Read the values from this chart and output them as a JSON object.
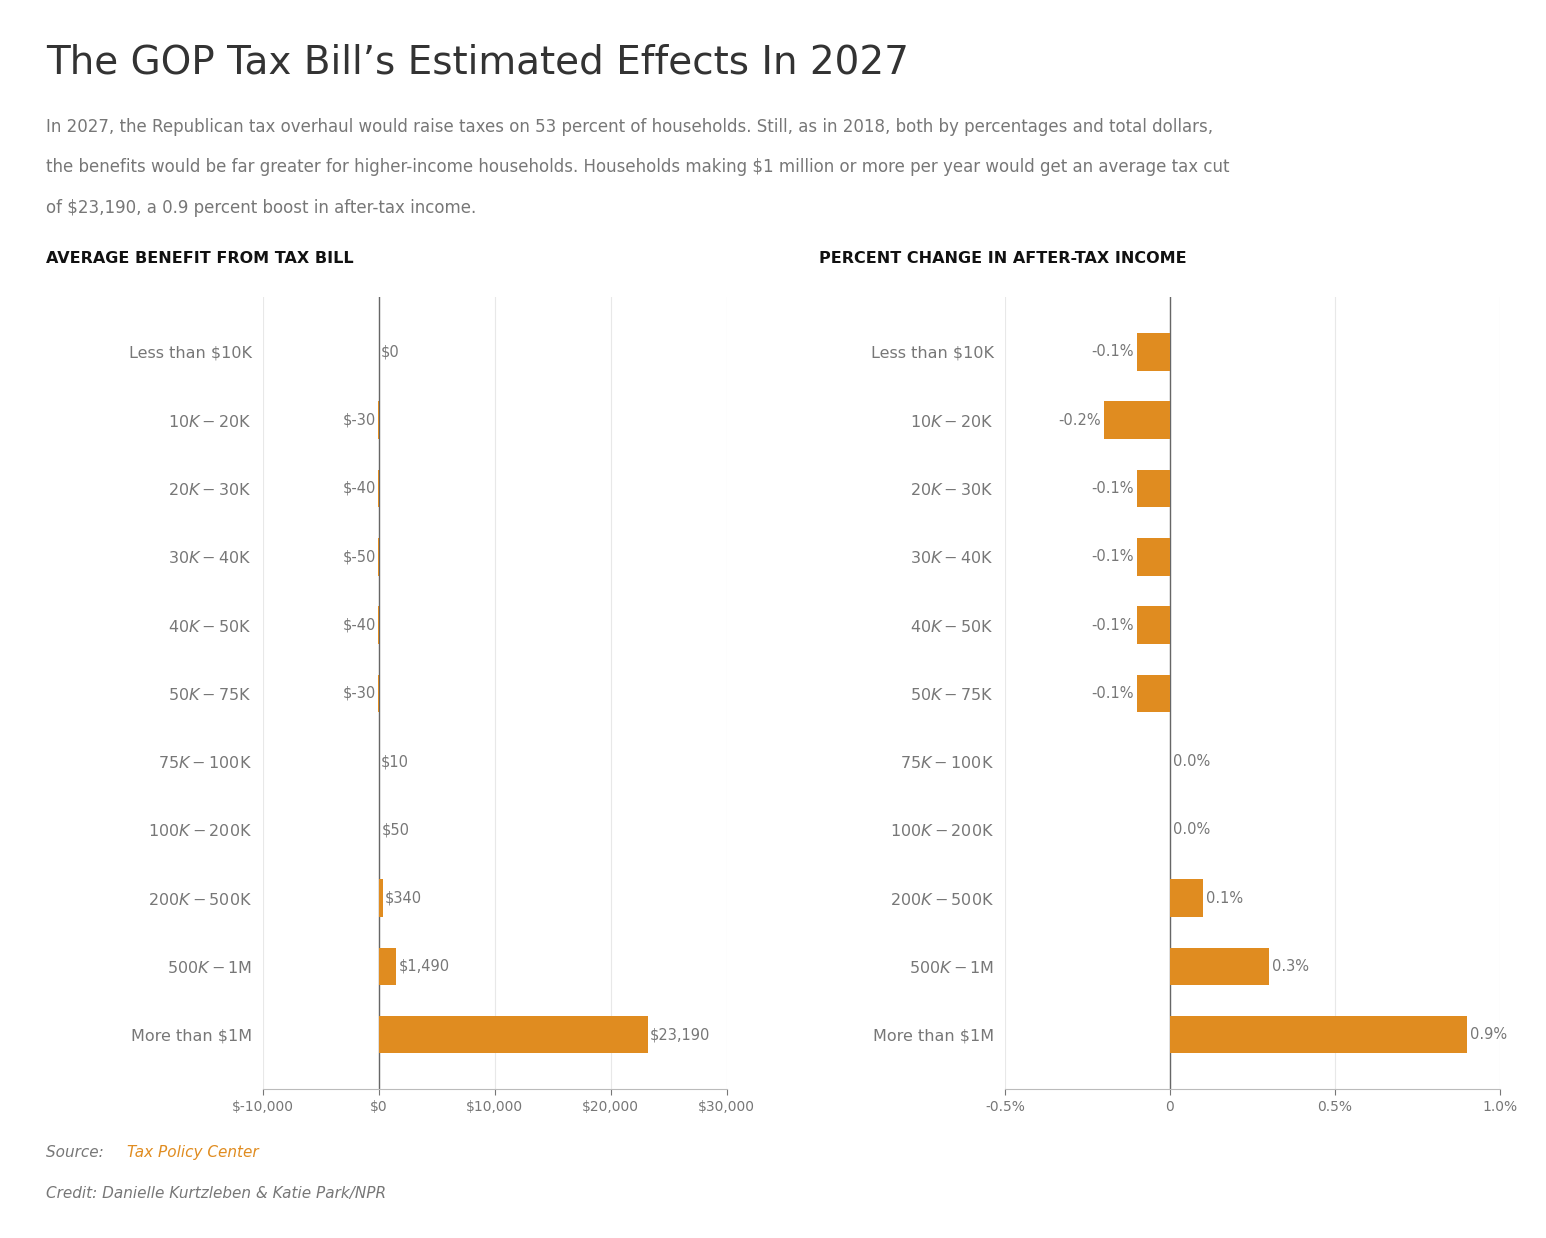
{
  "title": "The GOP Tax Bill’s Estimated Effects In 2027",
  "subtitle_line1": "In 2027, the Republican tax overhaul would raise taxes on 53 percent of households. Still, as in 2018, both by percentages and total dollars,",
  "subtitle_line2": "the benefits would be far greater for higher-income households. Households making $1 million or more per year would get an average tax cut",
  "subtitle_line3": "of $23,190, a 0.9 percent boost in after-tax income.",
  "source_text": "Source: ",
  "source_link": "Tax Policy Center",
  "credit_text": "Credit: Danielle Kurtzleben & Katie Park/NPR",
  "categories": [
    "Less than $10K",
    "$10K-$20K",
    "$20K-$30K",
    "$30K-$40K",
    "$40K-$50K",
    "$50K-$75K",
    "$75K-$100K",
    "$100K-$200K",
    "$200K-$500K",
    "$500K-$1M",
    "More than $1M"
  ],
  "left_values": [
    0,
    -30,
    -40,
    -50,
    -40,
    -30,
    10,
    50,
    340,
    1490,
    23190
  ],
  "left_labels": [
    "$0",
    "$-30",
    "$-40",
    "$-50",
    "$-40",
    "$-30",
    "$10",
    "$50",
    "$340",
    "$1,490",
    "$23,190"
  ],
  "right_values": [
    -0.1,
    -0.2,
    -0.1,
    -0.1,
    -0.1,
    -0.1,
    0.0,
    0.0,
    0.1,
    0.3,
    0.9
  ],
  "right_labels": [
    "-0.1%",
    "-0.2%",
    "-0.1%",
    "-0.1%",
    "-0.1%",
    "-0.1%",
    "0.0%",
    "0.0%",
    "0.1%",
    "0.3%",
    "0.9%"
  ],
  "bar_color": "#E08C20",
  "left_chart_title": "AVERAGE BENEFIT FROM TAX BILL",
  "right_chart_title": "PERCENT CHANGE IN AFTER-TAX INCOME",
  "left_xlim": [
    -10000,
    30000
  ],
  "right_xlim": [
    -0.5,
    1.0
  ],
  "left_xticks": [
    -10000,
    0,
    10000,
    20000,
    30000
  ],
  "left_xtick_labels": [
    "$-10,000",
    "$0",
    "$10,000",
    "$20,000",
    "$30,000"
  ],
  "right_xticks": [
    -0.5,
    0,
    0.5,
    1.0
  ],
  "right_xtick_labels": [
    "-0.5%",
    "0",
    "0.5%",
    "1.0%"
  ],
  "background_color": "#FFFFFF",
  "text_color": "#777777",
  "title_color": "#333333",
  "chart_title_color": "#111111",
  "axis_color": "#bbbbbb",
  "zero_line_color": "#666666",
  "source_link_color": "#E08C20"
}
